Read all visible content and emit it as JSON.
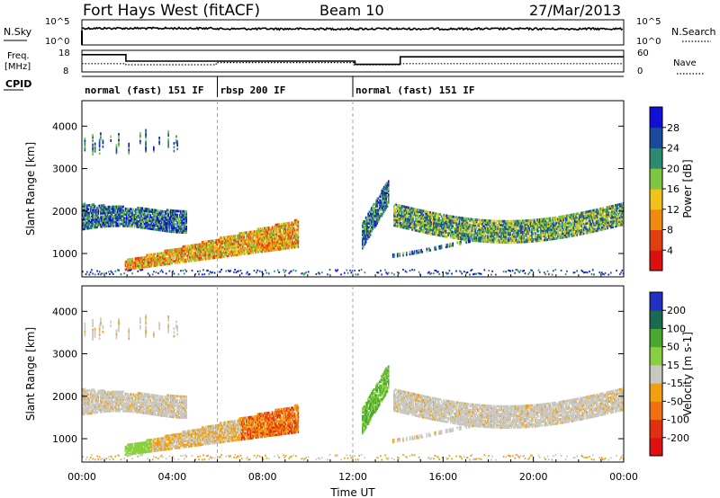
{
  "header": {
    "station": "Fort Hays West (fitACF)",
    "beam": "Beam 10",
    "date": "27/Mar/2013"
  },
  "labels": {
    "nsky": "N.Sky",
    "nsearch": "N.Search",
    "freq_line1": "Freq.",
    "freq_line2": "[MHz]",
    "nave": "Nave",
    "cpid": "CPID",
    "sky_ticks": [
      "10^5",
      "10^0"
    ],
    "search_ticks": [
      "10^5",
      "10^0"
    ],
    "freq_ticks": [
      "18",
      "8"
    ],
    "nave_ticks": [
      "60",
      "0"
    ]
  },
  "cpid_segments": [
    {
      "start": 0,
      "end": 6,
      "label": "normal (fast) 151 IF"
    },
    {
      "start": 6,
      "end": 12,
      "label": "rbsp 200 IF"
    },
    {
      "start": 12,
      "end": 24,
      "label": "normal (fast) 151 IF"
    }
  ],
  "chart_data": [
    {
      "type": "heatmap",
      "name": "power",
      "ylabel": "Slant Range [km]",
      "xlim": [
        0,
        24
      ],
      "ylim": [
        450,
        4600
      ],
      "yticks": [
        1000,
        2000,
        3000,
        4000
      ],
      "colorbar": {
        "label": "Power [dB]",
        "ticks": [
          "28",
          "24",
          "20",
          "16",
          "12",
          "8",
          "4"
        ],
        "colors": [
          "#1010d8",
          "#1a4a9a",
          "#2e8a6e",
          "#7fc640",
          "#f2c21a",
          "#f28a10",
          "#e04010",
          "#dd1010"
        ]
      },
      "features": [
        {
          "desc": "band",
          "x_start": 0.0,
          "x_end": 4.6,
          "range_low": 1500,
          "range_high": 2200
        },
        {
          "desc": "lower arc",
          "x_start": 1.9,
          "x_end": 9.6,
          "range_low": 600,
          "range_high": 1750
        },
        {
          "desc": "upper scatter",
          "x_start": 0.1,
          "x_end": 4.2,
          "range_low": 3300,
          "range_high": 4000
        },
        {
          "desc": "evening band",
          "x_start": 13.8,
          "x_end": 24.0,
          "range_low": 1400,
          "range_high": 2300
        }
      ]
    },
    {
      "type": "heatmap",
      "name": "velocity",
      "xlabel": "Time UT",
      "ylabel": "Slant Range [km]",
      "xlim": [
        0,
        24
      ],
      "ylim": [
        450,
        4600
      ],
      "xticks": [
        "00:00",
        "04:00",
        "08:00",
        "12:00",
        "16:00",
        "20:00",
        "00:00"
      ],
      "yticks": [
        1000,
        2000,
        3000,
        4000
      ],
      "colorbar": {
        "label": "Velocity [m s-1]",
        "ticks": [
          "200",
          "100",
          "50",
          "15",
          "-15",
          "-50",
          "-100",
          "-200"
        ],
        "colors": [
          "#2030c0",
          "#1a6a50",
          "#4aa830",
          "#88d040",
          "#c8c8c0",
          "#f2a010",
          "#f07010",
          "#e03010",
          "#e01010"
        ]
      }
    }
  ]
}
